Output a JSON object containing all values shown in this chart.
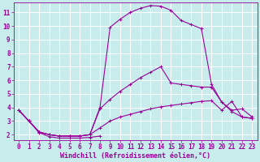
{
  "background_color": "#c8ecec",
  "grid_color": "#ffffff",
  "line_color": "#990099",
  "xlabel": "Windchill (Refroidissement éolien,°C)",
  "xlabel_fontsize": 6.0,
  "tick_fontsize": 5.5,
  "xlim": [
    -0.5,
    23.5
  ],
  "ylim": [
    1.6,
    11.7
  ],
  "yticks": [
    2,
    3,
    4,
    5,
    6,
    7,
    8,
    9,
    10,
    11
  ],
  "xticks": [
    0,
    1,
    2,
    3,
    4,
    5,
    6,
    7,
    8,
    9,
    10,
    11,
    12,
    13,
    14,
    15,
    16,
    17,
    18,
    19,
    20,
    21,
    22,
    23
  ],
  "curves": [
    {
      "x": [
        0,
        1,
        2,
        3,
        4,
        5,
        6,
        7,
        8,
        9,
        10,
        11,
        12,
        13,
        14,
        15,
        16,
        17,
        18,
        19,
        20,
        21,
        22,
        23
      ],
      "y": [
        3.8,
        3.0,
        2.2,
        2.0,
        1.9,
        1.9,
        1.9,
        2.0,
        4.0,
        9.9,
        10.5,
        11.0,
        11.3,
        11.5,
        11.45,
        11.15,
        10.4,
        10.1,
        9.8,
        5.7,
        4.4,
        3.8,
        3.9,
        3.3
      ]
    },
    {
      "x": [
        0,
        1,
        2,
        3,
        4,
        5,
        6,
        7,
        8,
        9,
        10,
        11,
        12,
        13,
        14,
        15,
        16,
        17,
        18,
        19,
        20,
        21,
        22,
        23
      ],
      "y": [
        3.8,
        3.0,
        2.2,
        2.0,
        1.9,
        1.9,
        1.9,
        2.0,
        3.9,
        4.6,
        5.2,
        5.7,
        6.2,
        6.6,
        7.0,
        5.8,
        5.7,
        5.6,
        5.5,
        5.5,
        4.4,
        3.7,
        3.3,
        3.2
      ]
    },
    {
      "x": [
        0,
        1,
        2,
        3,
        4,
        5,
        6,
        7,
        8,
        9,
        10,
        11,
        12,
        13,
        14,
        15,
        16,
        17,
        18,
        19,
        20,
        21,
        22,
        23
      ],
      "y": [
        3.8,
        3.0,
        2.2,
        2.0,
        1.9,
        1.9,
        1.9,
        2.0,
        2.5,
        3.0,
        3.3,
        3.5,
        3.7,
        3.9,
        4.05,
        4.15,
        4.25,
        4.35,
        4.45,
        4.5,
        3.8,
        4.45,
        3.3,
        3.2
      ]
    },
    {
      "x": [
        0,
        1,
        2,
        3,
        4,
        5,
        6,
        7,
        8
      ],
      "y": [
        3.8,
        3.0,
        2.15,
        1.85,
        1.75,
        1.75,
        1.75,
        1.8,
        1.9
      ]
    }
  ]
}
